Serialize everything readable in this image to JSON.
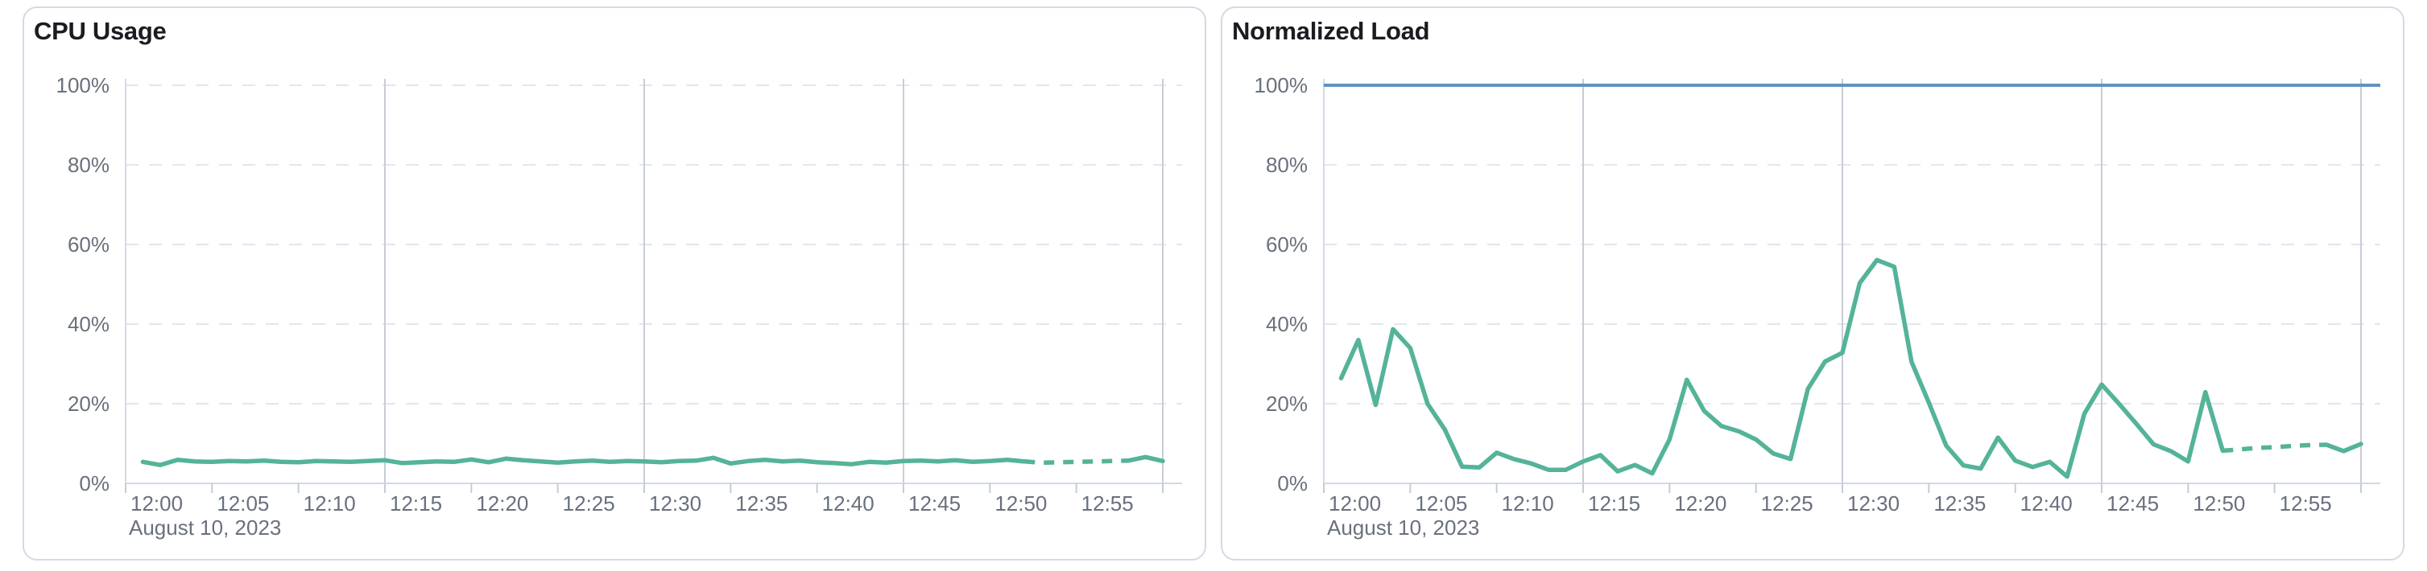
{
  "styles": {
    "background": "#ffffff",
    "card_border": "#d3dae6",
    "title_color": "#1a1c21",
    "label_color": "#69707d",
    "grid_dashed_color": "#e2e6ef",
    "grid_solid_color": "#c9cdd7",
    "axis_color": "#d3dae6",
    "tick_color": "#c6ccd6",
    "series_green": "#54B399",
    "series_blue": "#6092C0"
  },
  "chart_data": [
    {
      "type": "line",
      "title": "CPU Usage",
      "date_label": "August 10, 2023",
      "x_tick_labels": [
        "12:00",
        "12:05",
        "12:10",
        "12:15",
        "12:20",
        "12:25",
        "12:30",
        "12:35",
        "12:40",
        "12:45",
        "12:50",
        "12:55"
      ],
      "y_tick_labels": [
        "0%",
        "20%",
        "40%",
        "60%",
        "80%",
        "100%"
      ],
      "x_domain": [
        "12:00",
        "13:00"
      ],
      "y_domain_percent": [
        0,
        100
      ],
      "h_gridline_percents": [
        20,
        40,
        60,
        80,
        100
      ],
      "v_gridline_minutes": [
        15,
        30,
        45,
        60
      ],
      "grid_dashed": true,
      "legend": "none",
      "series": [
        {
          "name": "cpu-usage",
          "color": "#54B399",
          "start_minute": 1,
          "interval_minutes": 1,
          "dashed_from_minute": 52,
          "dashed_to_minute": 58,
          "values_percent": [
            5.4,
            4.6,
            5.9,
            5.5,
            5.4,
            5.6,
            5.5,
            5.7,
            5.4,
            5.3,
            5.6,
            5.5,
            5.4,
            5.6,
            5.8,
            5.1,
            5.3,
            5.5,
            5.4,
            6.0,
            5.3,
            6.2,
            5.8,
            5.5,
            5.2,
            5.5,
            5.7,
            5.4,
            5.6,
            5.5,
            5.3,
            5.6,
            5.7,
            6.4,
            5.0,
            5.6,
            5.9,
            5.5,
            5.7,
            5.3,
            5.1,
            4.8,
            5.4,
            5.2,
            5.6,
            5.7,
            5.5,
            5.8,
            5.4,
            5.6,
            5.9,
            5.5,
            5.2,
            5.3,
            5.4,
            5.5,
            5.6,
            5.7,
            6.6,
            5.6
          ]
        }
      ]
    },
    {
      "type": "line",
      "title": "Normalized Load",
      "date_label": "August 10, 2023",
      "x_tick_labels": [
        "12:00",
        "12:05",
        "12:10",
        "12:15",
        "12:20",
        "12:25",
        "12:30",
        "12:35",
        "12:40",
        "12:45",
        "12:50",
        "12:55"
      ],
      "y_tick_labels": [
        "0%",
        "20%",
        "40%",
        "60%",
        "80%",
        "100%"
      ],
      "x_domain": [
        "12:00",
        "13:00"
      ],
      "y_domain_percent": [
        0,
        100
      ],
      "h_gridline_percents": [
        20,
        40,
        60,
        80,
        100
      ],
      "v_gridline_minutes": [
        15,
        30,
        45,
        60
      ],
      "grid_dashed": true,
      "legend": "none",
      "series": [
        {
          "name": "normalized-load",
          "color": "#54B399",
          "start_minute": 1,
          "interval_minutes": 1,
          "dashed_from_minute": 52,
          "dashed_to_minute": 58,
          "values_percent": [
            26.4,
            36.0,
            19.7,
            38.7,
            34.0,
            20.0,
            13.5,
            4.2,
            4.0,
            7.7,
            6.1,
            5.0,
            3.4,
            3.4,
            5.5,
            7.1,
            3.0,
            4.6,
            2.5,
            11.0,
            26.0,
            18.2,
            14.4,
            13.1,
            11.0,
            7.5,
            6.1,
            23.7,
            30.6,
            32.8,
            50.3,
            56.1,
            54.4,
            30.5,
            20.3,
            9.5,
            4.5,
            3.7,
            11.5,
            5.7,
            4.1,
            5.4,
            1.7,
            17.5,
            24.8,
            20.0,
            15.0,
            9.8,
            8.1,
            5.5,
            22.9,
            8.2,
            8.5,
            8.9,
            9.1,
            9.4,
            9.6,
            9.7,
            8.1,
            9.9
          ]
        },
        {
          "name": "load-limit-reference",
          "type": "reference",
          "color": "#6092C0",
          "constant_percent": 100
        }
      ]
    }
  ]
}
